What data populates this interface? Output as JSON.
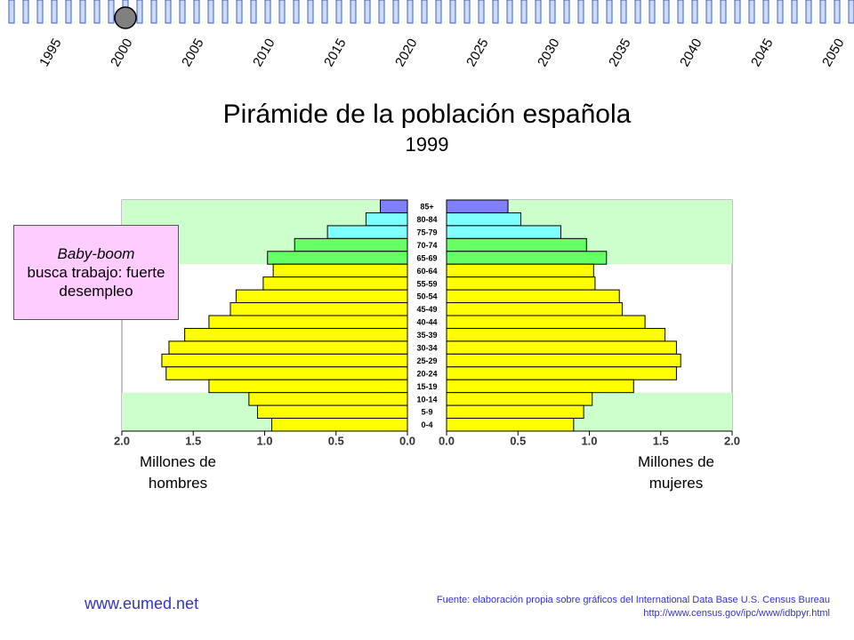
{
  "timeline": [
    "1995",
    "2000",
    "2005",
    "2010",
    "2015",
    "2020",
    "2025",
    "2030",
    "2035",
    "2040",
    "2045",
    "2050"
  ],
  "chart_data": {
    "type": "pyramid",
    "title": "Pirámide de la población española",
    "subtitle": "1999",
    "categories": [
      "85+",
      "80-84",
      "75-79",
      "70-74",
      "65-69",
      "60-64",
      "55-59",
      "50-54",
      "45-49",
      "40-44",
      "35-39",
      "30-34",
      "25-29",
      "20-24",
      "15-19",
      "10-14",
      "5-9",
      "0-4"
    ],
    "colors": [
      "#8080ff",
      "#80ffff",
      "#80ffff",
      "#66ff66",
      "#66ff66",
      "#ffff00",
      "#ffff00",
      "#ffff00",
      "#ffff00",
      "#ffff00",
      "#ffff00",
      "#ffff00",
      "#ffff00",
      "#ffff00",
      "#ffff00",
      "#ffff00",
      "#ffff00",
      "#ffff00"
    ],
    "series": [
      {
        "name": "Millones de hombres",
        "values": [
          0.19,
          0.29,
          0.56,
          0.79,
          0.98,
          0.94,
          1.01,
          1.2,
          1.24,
          1.39,
          1.56,
          1.67,
          1.72,
          1.69,
          1.39,
          1.11,
          1.05,
          0.95
        ]
      },
      {
        "name": "Millones de mujeres",
        "values": [
          0.43,
          0.52,
          0.8,
          0.98,
          1.12,
          1.03,
          1.04,
          1.21,
          1.23,
          1.39,
          1.53,
          1.61,
          1.64,
          1.61,
          1.31,
          1.02,
          0.96,
          0.89
        ]
      }
    ],
    "xlim": [
      0,
      2
    ],
    "xticks": [
      {
        "value": 0,
        "label": "0.0"
      },
      0.5,
      {
        "value": 1,
        "label": "1.0"
      },
      1.5,
      {
        "value": 2,
        "label": "2.0"
      }
    ],
    "annotation": {
      "emphasis": "Baby-boom",
      "text": "busca trabajo: fuerte desempleo"
    }
  },
  "footer": {
    "site": "www.eumed.net",
    "source": "Fuente: elaboración propia sobre gráficos del International Data Base U.S. Census Bureau",
    "url": "http://www.census.gov/ipc/www/idbpyr.html"
  }
}
